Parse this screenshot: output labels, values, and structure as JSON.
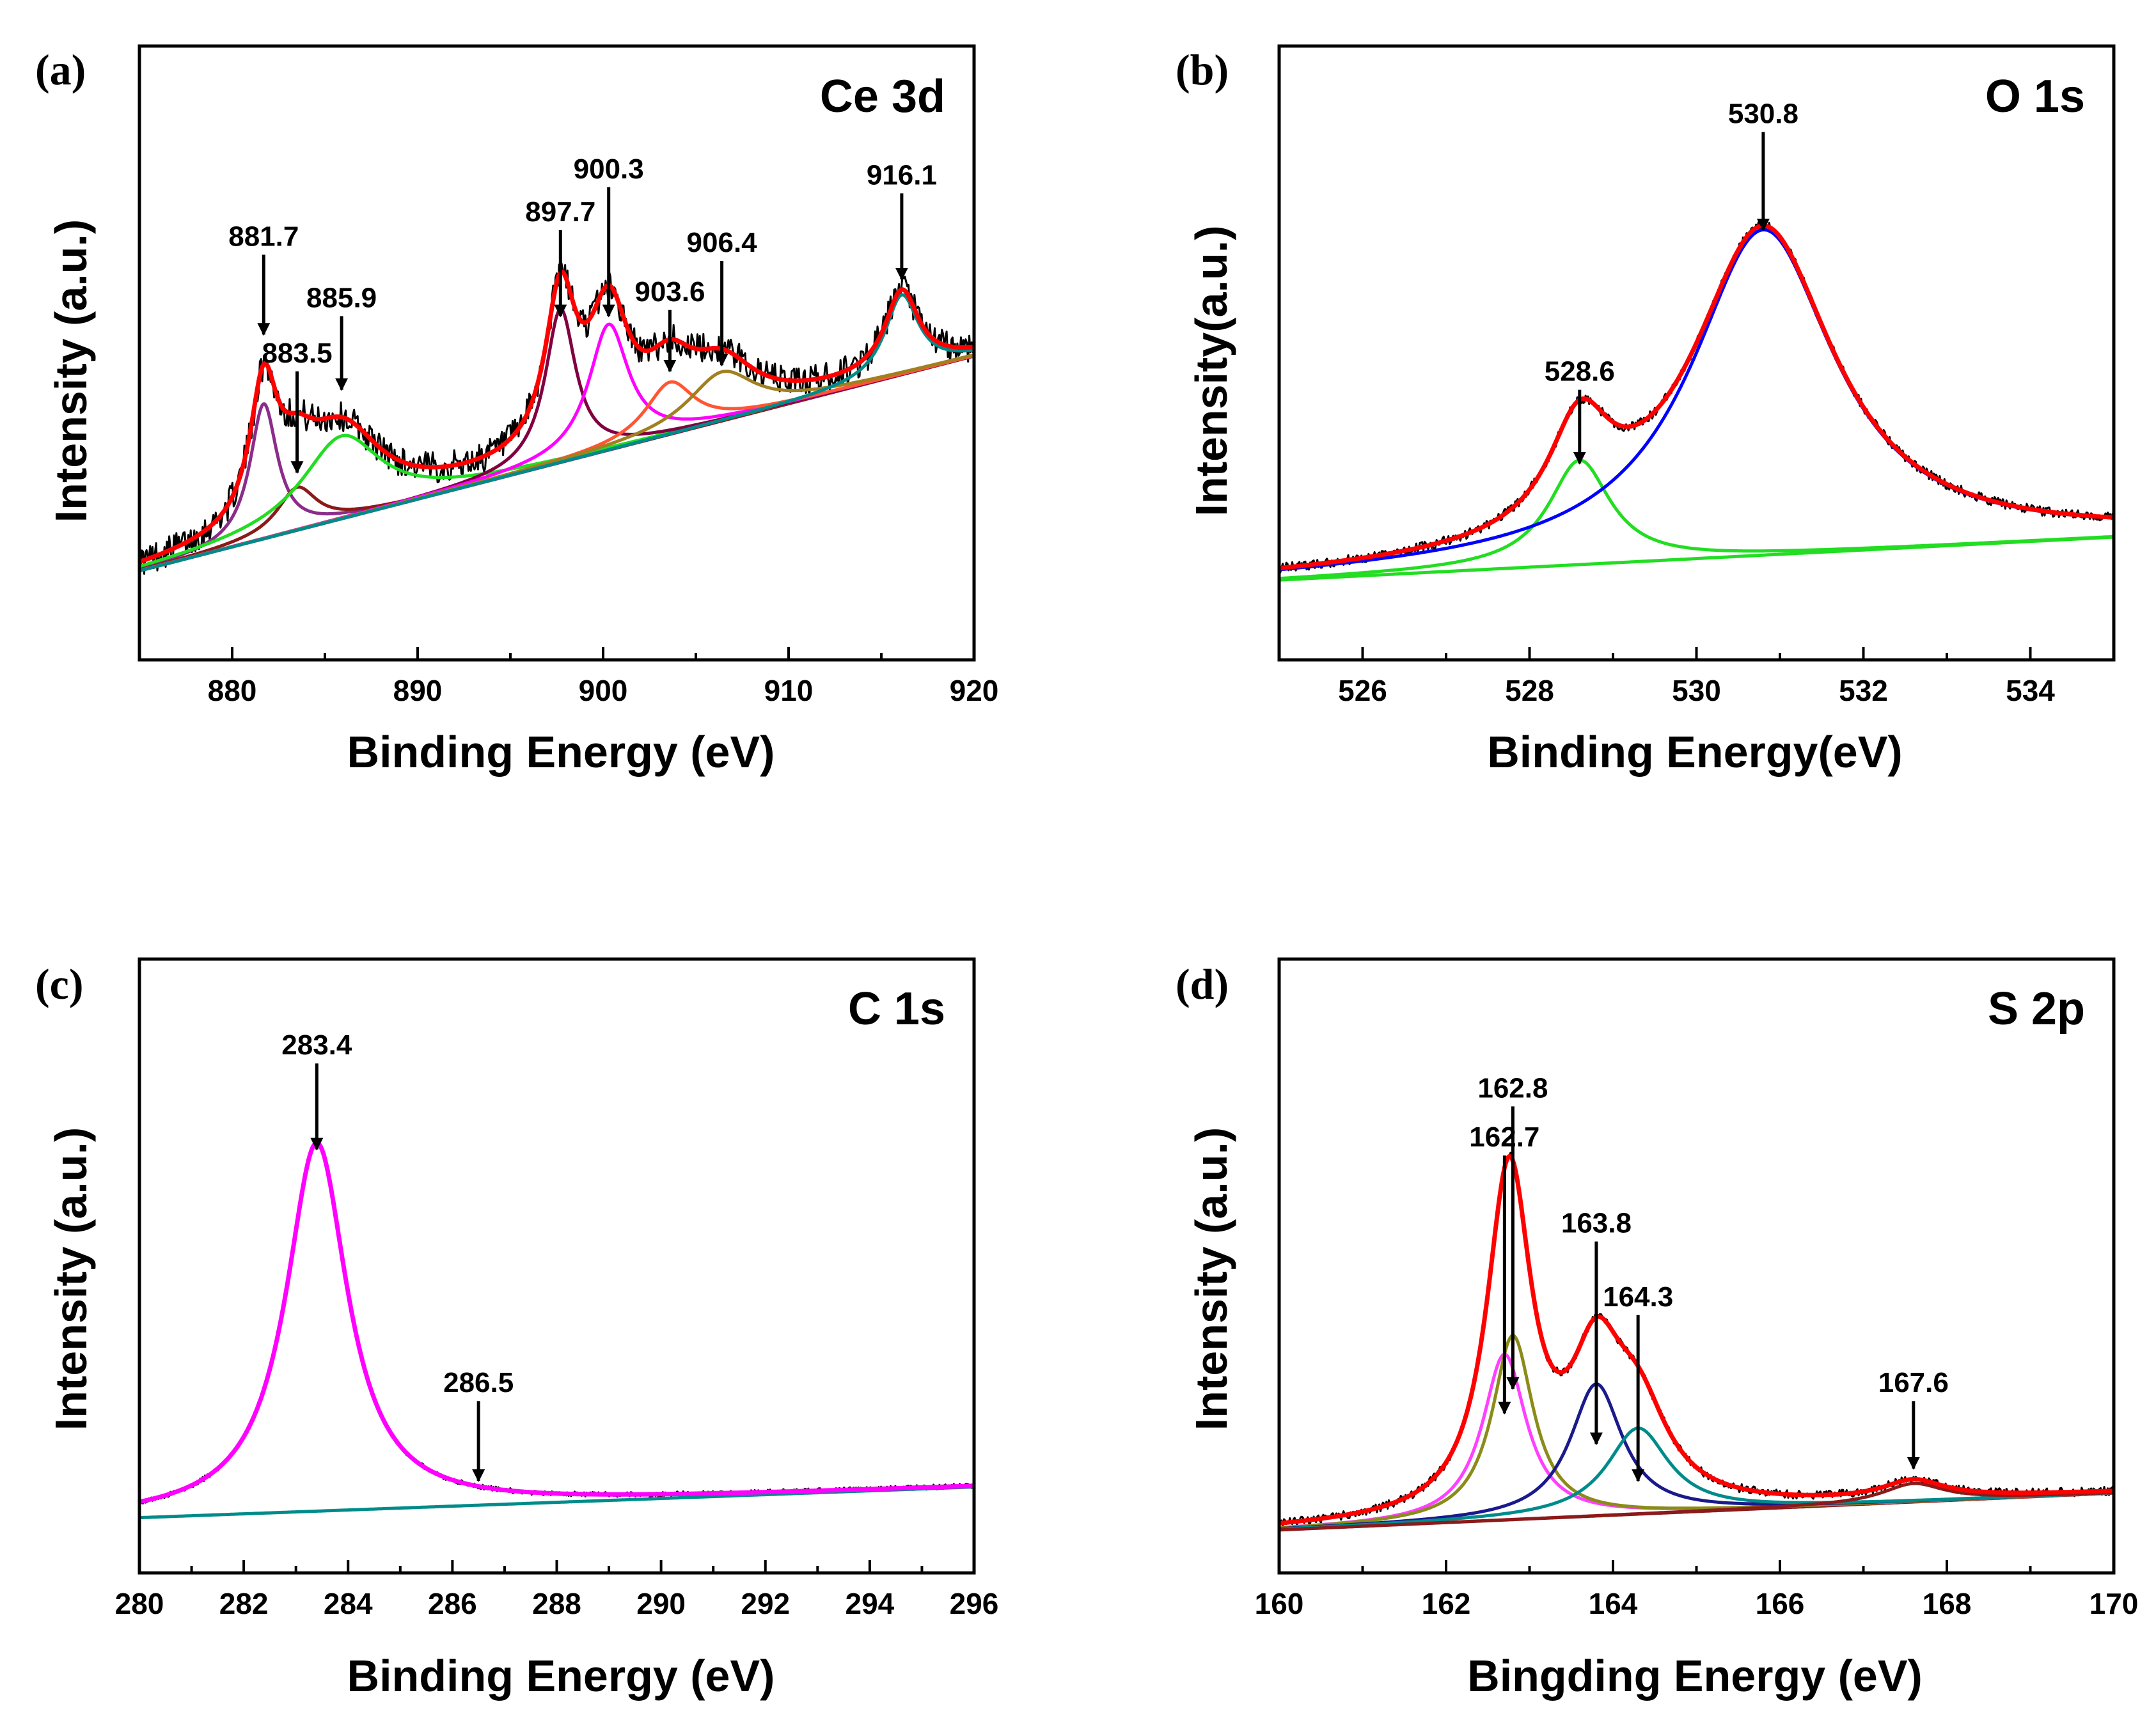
{
  "chart_data": [
    {
      "type": "line",
      "panel": "(a)",
      "element": "Ce 3d",
      "xlabel": "Binding Energy (eV)",
      "ylabel": "Intensity (a.u.)",
      "xlim": [
        875,
        920
      ],
      "ylim": [
        0,
        1
      ],
      "xticks": [
        880,
        890,
        900,
        910,
        920
      ],
      "x_minor_step": 5,
      "baseline": [
        [
          875,
          0.145
        ],
        [
          920,
          0.495
        ]
      ],
      "noise": 0.025,
      "experimental_color": "#000000",
      "envelope_color": "#ff0000",
      "baseline_color": "#7b2a7b",
      "components": [
        {
          "center": 881.7,
          "height": 0.22,
          "width": 0.9,
          "color": "#8b2c8b"
        },
        {
          "center": 883.5,
          "height": 0.07,
          "width": 1.3,
          "color": "#8b1a1a"
        },
        {
          "center": 885.9,
          "height": 0.135,
          "width": 2.6,
          "color": "#22dd22"
        },
        {
          "center": 897.7,
          "height": 0.25,
          "width": 1.0,
          "color": "#800040"
        },
        {
          "center": 900.3,
          "height": 0.205,
          "width": 1.3,
          "color": "#ff00ff"
        },
        {
          "center": 903.6,
          "height": 0.085,
          "width": 1.6,
          "color": "#ff5533"
        },
        {
          "center": 906.4,
          "height": 0.08,
          "width": 2.2,
          "color": "#a08020"
        },
        {
          "center": 916.1,
          "height": 0.13,
          "width": 1.1,
          "color": "#008b8b"
        }
      ],
      "annotations": [
        {
          "label": "881.7",
          "x": 881.7,
          "arrow_top": 0.66,
          "arrow_tip": 0.53
        },
        {
          "label": "883.5",
          "x": 883.5,
          "arrow_top": 0.47,
          "arrow_tip": 0.305
        },
        {
          "label": "885.9",
          "x": 885.9,
          "arrow_top": 0.56,
          "arrow_tip": 0.44
        },
        {
          "label": "897.7",
          "x": 897.7,
          "arrow_top": 0.7,
          "arrow_tip": 0.56
        },
        {
          "label": "900.3",
          "x": 900.3,
          "arrow_top": 0.77,
          "arrow_tip": 0.56
        },
        {
          "label": "903.6",
          "x": 903.6,
          "arrow_top": 0.57,
          "arrow_tip": 0.47
        },
        {
          "label": "906.4",
          "x": 906.4,
          "arrow_top": 0.65,
          "arrow_tip": 0.48
        },
        {
          "label": "916.1",
          "x": 916.1,
          "arrow_top": 0.76,
          "arrow_tip": 0.62
        }
      ]
    },
    {
      "type": "line",
      "panel": "(b)",
      "element": "O 1s",
      "xlabel": "Binding Energy(eV)",
      "ylabel": "Intensity(a.u.)",
      "xlim": [
        525,
        535
      ],
      "ylim": [
        0,
        1
      ],
      "xticks": [
        526,
        528,
        530,
        532,
        534
      ],
      "x_minor_step": 1,
      "baseline": [
        [
          525,
          0.13
        ],
        [
          535,
          0.2
        ]
      ],
      "noise": 0.008,
      "experimental_color": "#000000",
      "envelope_color": "#ff0000",
      "baseline_color": "#22dd22",
      "components": [
        {
          "center": 528.6,
          "height": 0.17,
          "width": 0.45,
          "color": "#22dd22"
        },
        {
          "center": 530.8,
          "height": 0.53,
          "width": 1.05,
          "color": "#0000ff"
        }
      ],
      "annotations": [
        {
          "label": "528.6",
          "x": 528.6,
          "arrow_top": 0.44,
          "arrow_tip": 0.32
        },
        {
          "label": "530.8",
          "x": 530.8,
          "arrow_top": 0.86,
          "arrow_tip": 0.7
        }
      ]
    },
    {
      "type": "line",
      "panel": "(c)",
      "element": "C 1s",
      "xlabel": "Binding Energy (eV)",
      "ylabel": "Intensity (a.u.)",
      "xlim": [
        280,
        296
      ],
      "ylim": [
        0,
        1
      ],
      "xticks": [
        280,
        282,
        284,
        286,
        288,
        290,
        292,
        294,
        296
      ],
      "x_minor_step": 1,
      "baseline": [
        [
          280,
          0.09
        ],
        [
          296,
          0.14
        ]
      ],
      "noise": 0.004,
      "experimental_color": "#000000",
      "envelope_color": "#ff00ff",
      "baseline_color": "#008b8b",
      "components": [
        {
          "center": 283.4,
          "height": 0.6,
          "width": 0.72,
          "color": "#ff00ff"
        }
      ],
      "annotations": [
        {
          "label": "283.4",
          "x": 283.4,
          "arrow_top": 0.83,
          "arrow_tip": 0.69
        },
        {
          "label": "286.5",
          "x": 286.5,
          "arrow_top": 0.28,
          "arrow_tip": 0.15
        }
      ]
    },
    {
      "type": "line",
      "panel": "(d)",
      "element": "S 2p",
      "xlabel": "Bingding Energy (eV)",
      "ylabel": "Intensity (a.u.)",
      "xlim": [
        160,
        170
      ],
      "ylim": [
        0,
        1
      ],
      "xticks": [
        160,
        162,
        164,
        166,
        168,
        170
      ],
      "x_minor_step": 1,
      "baseline": [
        [
          160,
          0.07
        ],
        [
          170,
          0.13
        ]
      ],
      "noise": 0.007,
      "experimental_color": "#000000",
      "envelope_color": "#ff0000",
      "baseline_color": "#8b1a1a",
      "components": [
        {
          "center": 162.7,
          "height": 0.27,
          "width": 0.32,
          "color": "#ff40ff"
        },
        {
          "center": 162.8,
          "height": 0.3,
          "width": 0.3,
          "color": "#8b8b1a"
        },
        {
          "center": 163.8,
          "height": 0.215,
          "width": 0.38,
          "color": "#1a1a8b"
        },
        {
          "center": 164.3,
          "height": 0.14,
          "width": 0.45,
          "color": "#008b8b"
        },
        {
          "center": 167.6,
          "height": 0.03,
          "width": 0.45,
          "color": "#8b1a1a"
        }
      ],
      "annotations": [
        {
          "label": "162.7",
          "x": 162.7,
          "arrow_top": 0.68,
          "arrow_tip": 0.26
        },
        {
          "label": "162.8",
          "x": 162.8,
          "arrow_top": 0.76,
          "arrow_tip": 0.3
        },
        {
          "label": "163.8",
          "x": 163.8,
          "arrow_top": 0.54,
          "arrow_tip": 0.21
        },
        {
          "label": "164.3",
          "x": 164.3,
          "arrow_top": 0.42,
          "arrow_tip": 0.15
        },
        {
          "label": "167.6",
          "x": 167.6,
          "arrow_top": 0.28,
          "arrow_tip": 0.17
        }
      ]
    }
  ]
}
